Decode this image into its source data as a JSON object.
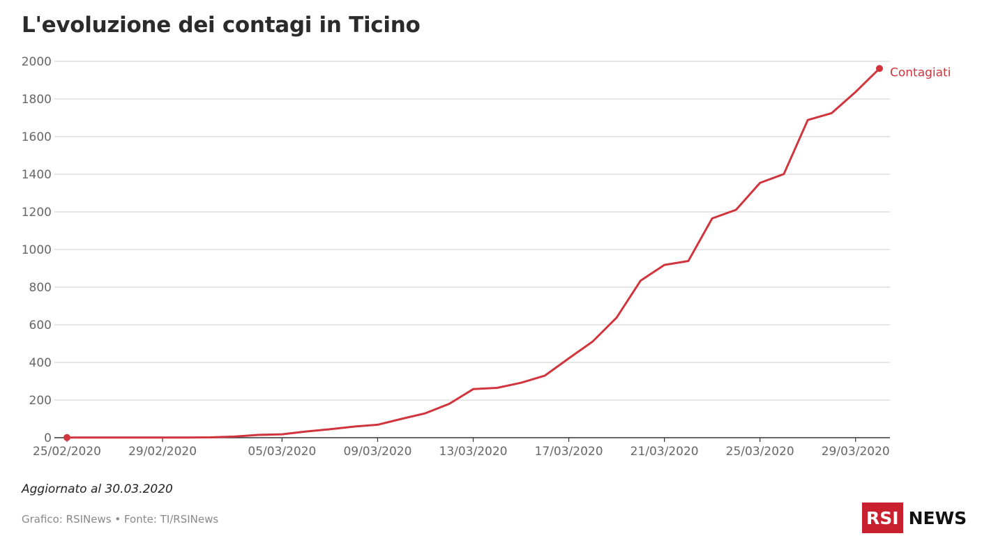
{
  "header": {
    "title": "L'evoluzione dei contagi in Ticino"
  },
  "footer": {
    "updated": "Aggiornato al 30.03.2020",
    "source": "Grafico: RSINews • Fonte: TI/RSINews",
    "logo_box": "RSI",
    "logo_text": "NEWS"
  },
  "colors": {
    "line": "#d0343c",
    "grid": "#d6d6d6",
    "axis_text": "#666666"
  },
  "chart_data": {
    "type": "line",
    "title": "L'evoluzione dei contagi in Ticino",
    "xlabel": "",
    "ylabel": "",
    "ylim": [
      0,
      2000
    ],
    "yticks": [
      0,
      200,
      400,
      600,
      800,
      1000,
      1200,
      1400,
      1600,
      1800,
      2000
    ],
    "xtick_labels": [
      "25/02/2020",
      "29/02/2020",
      "05/03/2020",
      "09/03/2020",
      "13/03/2020",
      "17/03/2020",
      "21/03/2020",
      "25/03/2020",
      "29/03/2020"
    ],
    "grid": true,
    "series": [
      {
        "name": "Contagiati",
        "x": [
          "25/02/2020",
          "26/02/2020",
          "27/02/2020",
          "28/02/2020",
          "29/02/2020",
          "01/03/2020",
          "02/03/2020",
          "03/03/2020",
          "04/03/2020",
          "05/03/2020",
          "06/03/2020",
          "07/03/2020",
          "08/03/2020",
          "09/03/2020",
          "10/03/2020",
          "11/03/2020",
          "12/03/2020",
          "13/03/2020",
          "14/03/2020",
          "15/03/2020",
          "16/03/2020",
          "17/03/2020",
          "18/03/2020",
          "19/03/2020",
          "20/03/2020",
          "21/03/2020",
          "22/03/2020",
          "23/03/2020",
          "24/03/2020",
          "25/03/2020",
          "26/03/2020",
          "27/03/2020",
          "28/03/2020",
          "29/03/2020",
          "30/03/2020"
        ],
        "values": [
          1,
          1,
          1,
          1,
          1,
          1,
          2,
          6,
          15,
          18,
          33,
          45,
          59,
          69,
          100,
          130,
          180,
          258,
          265,
          292,
          330,
          422,
          511,
          638,
          834,
          918,
          939,
          1165,
          1211,
          1354,
          1401,
          1688,
          1725,
          1837,
          1962
        ]
      }
    ]
  }
}
